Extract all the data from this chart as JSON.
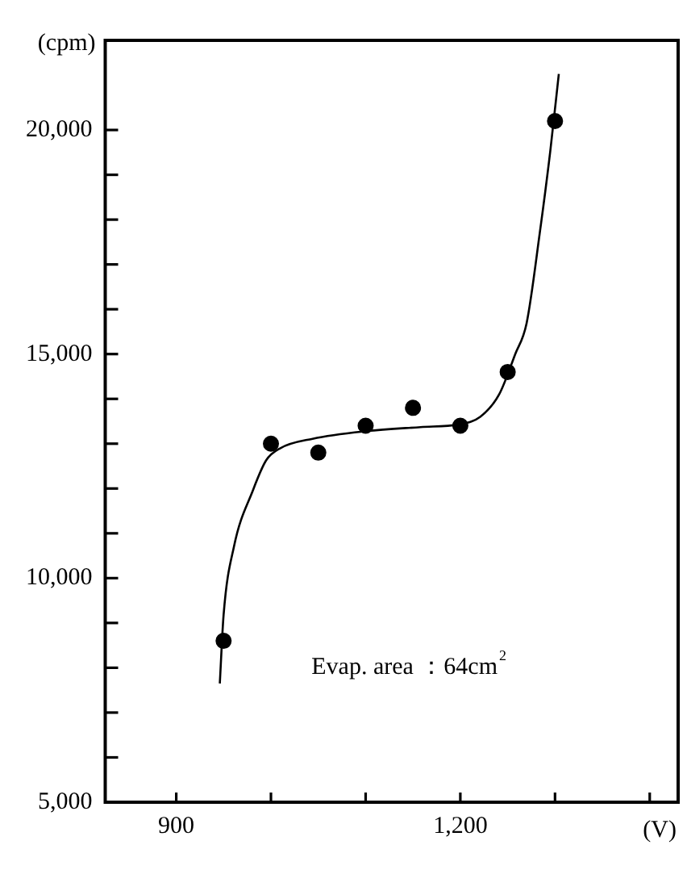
{
  "chart_data": {
    "type": "scatter",
    "xlabel": "(V)",
    "ylabel": "(cpm)",
    "annotations": [
      "Evap. area ：64cm$^{2}$"
    ],
    "xlim": [
      825,
      1430
    ],
    "ylim": [
      5000,
      22000
    ],
    "xticks": [
      900,
      {
        "value": 1000,
        "label": null
      },
      {
        "value": 1100,
        "label": null
      },
      {
        "value": 1200,
        "label": "1,200"
      },
      {
        "value": 1300,
        "label": null
      },
      {
        "value": 1400,
        "label": null
      }
    ],
    "yticks": [
      {
        "value": 5000,
        "label": "5,000"
      },
      {
        "value": 6000,
        "label": null
      },
      {
        "value": 7000,
        "label": null
      },
      {
        "value": 8000,
        "label": null
      },
      {
        "value": 9000,
        "label": null
      },
      {
        "value": 10000,
        "label": "10,000"
      },
      {
        "value": 11000,
        "label": null
      },
      {
        "value": 12000,
        "label": null
      },
      {
        "value": 13000,
        "label": null
      },
      {
        "value": 14000,
        "label": null
      },
      {
        "value": 15000,
        "label": "15,000"
      },
      {
        "value": 16000,
        "label": null
      },
      {
        "value": 17000,
        "label": null
      },
      {
        "value": 18000,
        "label": null
      },
      {
        "value": 19000,
        "label": null
      },
      {
        "value": 20000,
        "label": "20,000"
      }
    ],
    "grid": false,
    "legend": false,
    "marker": "circle",
    "series": [
      {
        "type": "scatter",
        "color": "#000000",
        "x": [
          950,
          1000,
          1050,
          1100,
          1150,
          1200,
          1250,
          1300
        ],
        "values": [
          8600,
          13000,
          12800,
          13400,
          13800,
          13400,
          14600,
          20200
        ]
      },
      {
        "type": "line",
        "color": "#000000",
        "marker": "none",
        "line_style": "solid",
        "x": [
          946,
          950,
          961,
          981,
          995,
          1010,
          1044,
          1101,
          1158,
          1198,
          1221,
          1241,
          1258,
          1270,
          1284,
          1295,
          1304
        ],
        "values": [
          7650,
          9180,
          10710,
          11960,
          12630,
          12900,
          13110,
          13280,
          13370,
          13430,
          13600,
          14100,
          15000,
          15690,
          17720,
          19530,
          21250
        ]
      }
    ]
  }
}
